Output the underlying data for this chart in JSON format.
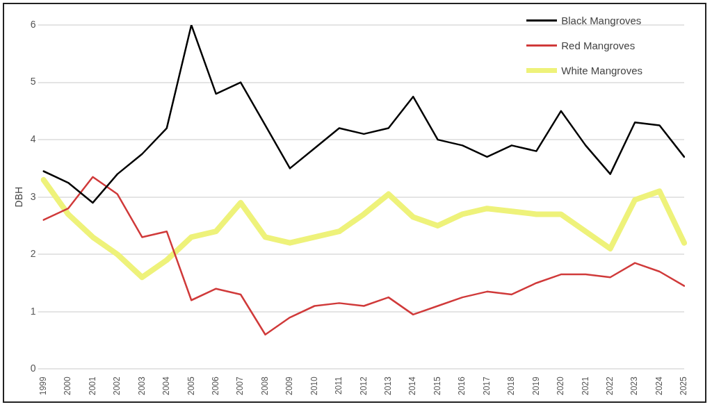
{
  "chart_data": {
    "type": "line",
    "ylabel": "DBH",
    "categories": [
      "1999",
      "2000",
      "2001",
      "2002",
      "2003",
      "2004",
      "2005",
      "2006",
      "2007",
      "2008",
      "2009",
      "2010",
      "2011",
      "2012",
      "2013",
      "2014",
      "2015",
      "2016",
      "2017",
      "2018",
      "2019",
      "2020",
      "2021",
      "2022",
      "2023",
      "2024",
      "2025"
    ],
    "series": [
      {
        "name": "Black Mangroves",
        "color": "#000000",
        "values": [
          3.45,
          3.25,
          2.9,
          3.4,
          3.75,
          4.2,
          6.0,
          4.8,
          5.0,
          4.25,
          3.5,
          3.85,
          4.2,
          4.1,
          4.2,
          4.75,
          4.0,
          3.9,
          3.7,
          3.9,
          3.8,
          4.5,
          3.9,
          3.4,
          4.3,
          4.25,
          3.7
        ]
      },
      {
        "name": "Red Mangroves",
        "color": "#d03a3a",
        "values": [
          2.6,
          2.8,
          3.35,
          3.05,
          2.3,
          2.4,
          1.2,
          1.4,
          1.3,
          0.6,
          0.9,
          1.1,
          1.15,
          1.1,
          1.25,
          0.95,
          1.1,
          1.25,
          1.35,
          1.3,
          1.5,
          1.65,
          1.65,
          1.6,
          1.85,
          1.7,
          1.45
        ]
      },
      {
        "name": "White Mangroves",
        "color": "#eef27a",
        "values": [
          3.3,
          2.7,
          2.3,
          2.0,
          1.6,
          1.9,
          2.3,
          2.4,
          2.9,
          2.3,
          2.2,
          2.3,
          2.4,
          2.7,
          3.05,
          2.65,
          2.5,
          2.7,
          2.8,
          2.75,
          2.7,
          2.7,
          2.4,
          2.1,
          2.95,
          3.1,
          2.2
        ]
      }
    ],
    "ylim": [
      0,
      6
    ],
    "yticks": [
      0,
      1,
      2,
      3,
      4,
      5,
      6
    ],
    "grid": "y",
    "legend": "top right",
    "marker": "none",
    "line_style": "solid"
  }
}
